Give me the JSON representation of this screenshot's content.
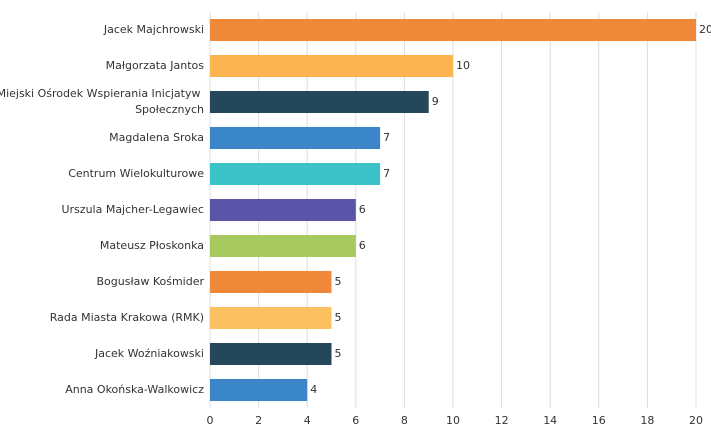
{
  "chart_data": {
    "type": "barh",
    "categories": [
      "Jacek Majchrowski",
      "Małgorzata Jantos",
      "Miejski Ośrodek Wspierania Inicjatyw Społecznych",
      "Magdalena Sroka",
      "Centrum Wielokulturowe",
      "Urszula Majcher-Legawiec",
      "Mateusz Płoskonka",
      "Bogusław Kośmider",
      "Rada Miasta Krakowa (RMK)",
      "Jacek Woźniakowski",
      "Anna Okońska-Walkowicz"
    ],
    "values": [
      20,
      10,
      9,
      7,
      7,
      6,
      6,
      5,
      5,
      5,
      4
    ],
    "colors": [
      "#f0883a",
      "#fbb450",
      "#25475a",
      "#3b86c8",
      "#3cc3c8",
      "#5a55a8",
      "#a8c860",
      "#f0883a",
      "#fbc060",
      "#25475a",
      "#3b86c8"
    ],
    "xlim": [
      0,
      20
    ],
    "xticks": [
      0,
      2,
      4,
      6,
      8,
      10,
      12,
      14,
      16,
      18,
      20
    ],
    "grid": true
  }
}
